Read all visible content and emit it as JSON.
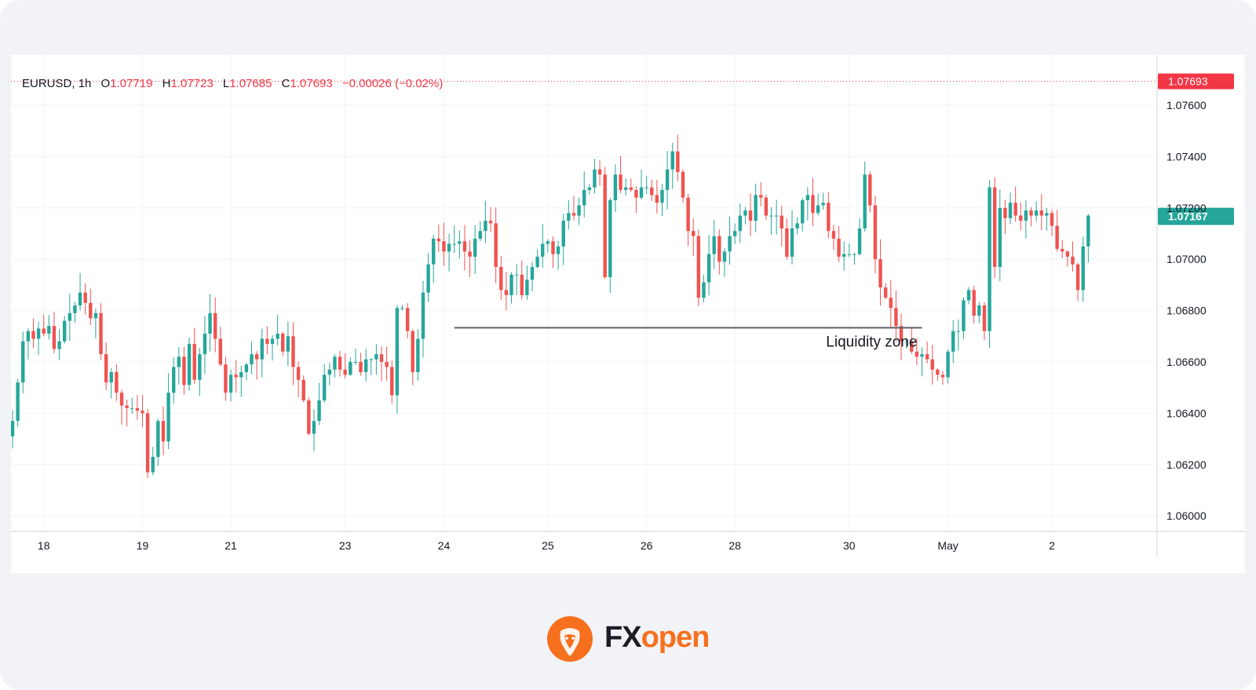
{
  "chart_data": {
    "type": "candlestick",
    "symbol": "EURUSD",
    "interval": "1h",
    "ohlc": {
      "o_label": "O",
      "o": "1.07719",
      "h_label": "H",
      "h": "1.07723",
      "l_label": "L",
      "l": "1.07685",
      "c_label": "C",
      "c": "1.07693",
      "change": "−0.00026",
      "change_pct": "(−0.02%)"
    },
    "ylim": [
      1.0597,
      1.0775
    ],
    "y_ticks": [
      "1.07600",
      "1.07400",
      "1.07200",
      "1.07000",
      "1.06800",
      "1.06600",
      "1.06400",
      "1.06200",
      "1.06000"
    ],
    "x_ticks": [
      {
        "label": "18",
        "bar": 6
      },
      {
        "label": "19",
        "bar": 25
      },
      {
        "label": "21",
        "bar": 42
      },
      {
        "label": "23",
        "bar": 64
      },
      {
        "label": "24",
        "bar": 83
      },
      {
        "label": "25",
        "bar": 103
      },
      {
        "label": "26",
        "bar": 122
      },
      {
        "label": "28",
        "bar": 139
      },
      {
        "label": "30",
        "bar": 161
      },
      {
        "label": "May",
        "bar": 180
      },
      {
        "label": "2",
        "bar": 200
      }
    ],
    "price_labels": {
      "top": {
        "value": 1.07693,
        "text": "1.07693",
        "color": "#f23645"
      },
      "current": {
        "value": 1.07167,
        "text": "1.07167",
        "color": "#26a69a"
      }
    },
    "annotation": {
      "text": "Liquidity zone",
      "price": 1.06733,
      "from_bar": 85,
      "to_bar": 175
    },
    "up_color": "#26a69a",
    "down_color": "#ef5350",
    "grid": true,
    "closes": [
      1.0637,
      1.0652,
      1.0668,
      1.0672,
      1.0669,
      1.0673,
      1.0671,
      1.0674,
      1.0665,
      1.0668,
      1.0676,
      1.0679,
      1.0682,
      1.0687,
      1.0683,
      1.0677,
      1.0679,
      1.0663,
      1.0652,
      1.0656,
      1.0648,
      1.0643,
      1.0642,
      1.0642,
      1.0641,
      1.064,
      1.0617,
      1.0623,
      1.0637,
      1.0629,
      1.0648,
      1.0658,
      1.0662,
      1.0651,
      1.0667,
      1.0653,
      1.0663,
      1.0671,
      1.0679,
      1.0669,
      1.0659,
      1.0648,
      1.0655,
      1.0654,
      1.0656,
      1.0659,
      1.0663,
      1.0661,
      1.0669,
      1.0667,
      1.0669,
      1.0671,
      1.0664,
      1.067,
      1.0658,
      1.0653,
      1.0645,
      1.0632,
      1.0637,
      1.0645,
      1.0655,
      1.0657,
      1.0662,
      1.0657,
      1.0655,
      1.066,
      1.066,
      1.0656,
      1.0661,
      1.0661,
      1.0663,
      1.066,
      1.0658,
      1.0647,
      1.0681,
      1.0681,
      1.0672,
      1.0656,
      1.0669,
      1.0687,
      1.0698,
      1.0708,
      1.0707,
      1.0703,
      1.0706,
      1.0706,
      1.0707,
      1.0703,
      1.0701,
      1.0708,
      1.0711,
      1.0715,
      1.0714,
      1.0697,
      1.0688,
      1.0686,
      1.0694,
      1.0694,
      1.0686,
      1.0692,
      1.0697,
      1.0701,
      1.0706,
      1.0707,
      1.0702,
      1.0705,
      1.0715,
      1.0718,
      1.0717,
      1.0721,
      1.0727,
      1.0728,
      1.0735,
      1.0733,
      1.0693,
      1.0723,
      1.0733,
      1.0727,
      1.0728,
      1.0727,
      1.0724,
      1.0728,
      1.0728,
      1.0725,
      1.0722,
      1.0727,
      1.0735,
      1.0742,
      1.0734,
      1.0724,
      1.0711,
      1.0709,
      1.0685,
      1.0691,
      1.0702,
      1.0709,
      1.0699,
      1.0703,
      1.0709,
      1.0711,
      1.0717,
      1.0719,
      1.0715,
      1.0725,
      1.0724,
      1.0717,
      1.0717,
      1.0717,
      1.0712,
      1.0701,
      1.0712,
      1.0714,
      1.0723,
      1.0725,
      1.0718,
      1.0721,
      1.0722,
      1.0711,
      1.0708,
      1.0701,
      1.0702,
      1.0702,
      1.0702,
      1.0712,
      1.0733,
      1.0721,
      1.07,
      1.0689,
      1.0685,
      1.0681,
      1.0674,
      1.0668,
      1.0668,
      1.0664,
      1.0662,
      1.0663,
      1.0661,
      1.0657,
      1.0655,
      1.0654,
      1.0664,
      1.0672,
      1.0672,
      1.0684,
      1.0688,
      1.0678,
      1.0682,
      1.0672,
      1.0728,
      1.0697,
      1.072,
      1.0716,
      1.0722,
      1.0717,
      1.0715,
      1.0719,
      1.0717,
      1.0719,
      1.0717,
      1.0718,
      1.0713,
      1.0704,
      1.0703,
      1.0701,
      1.0698,
      1.0688,
      1.0705,
      1.0717
    ]
  },
  "logo": {
    "part1": "FX",
    "part2": "open",
    "mark": "bull-head-icon",
    "brand_color": "#f7701e"
  }
}
